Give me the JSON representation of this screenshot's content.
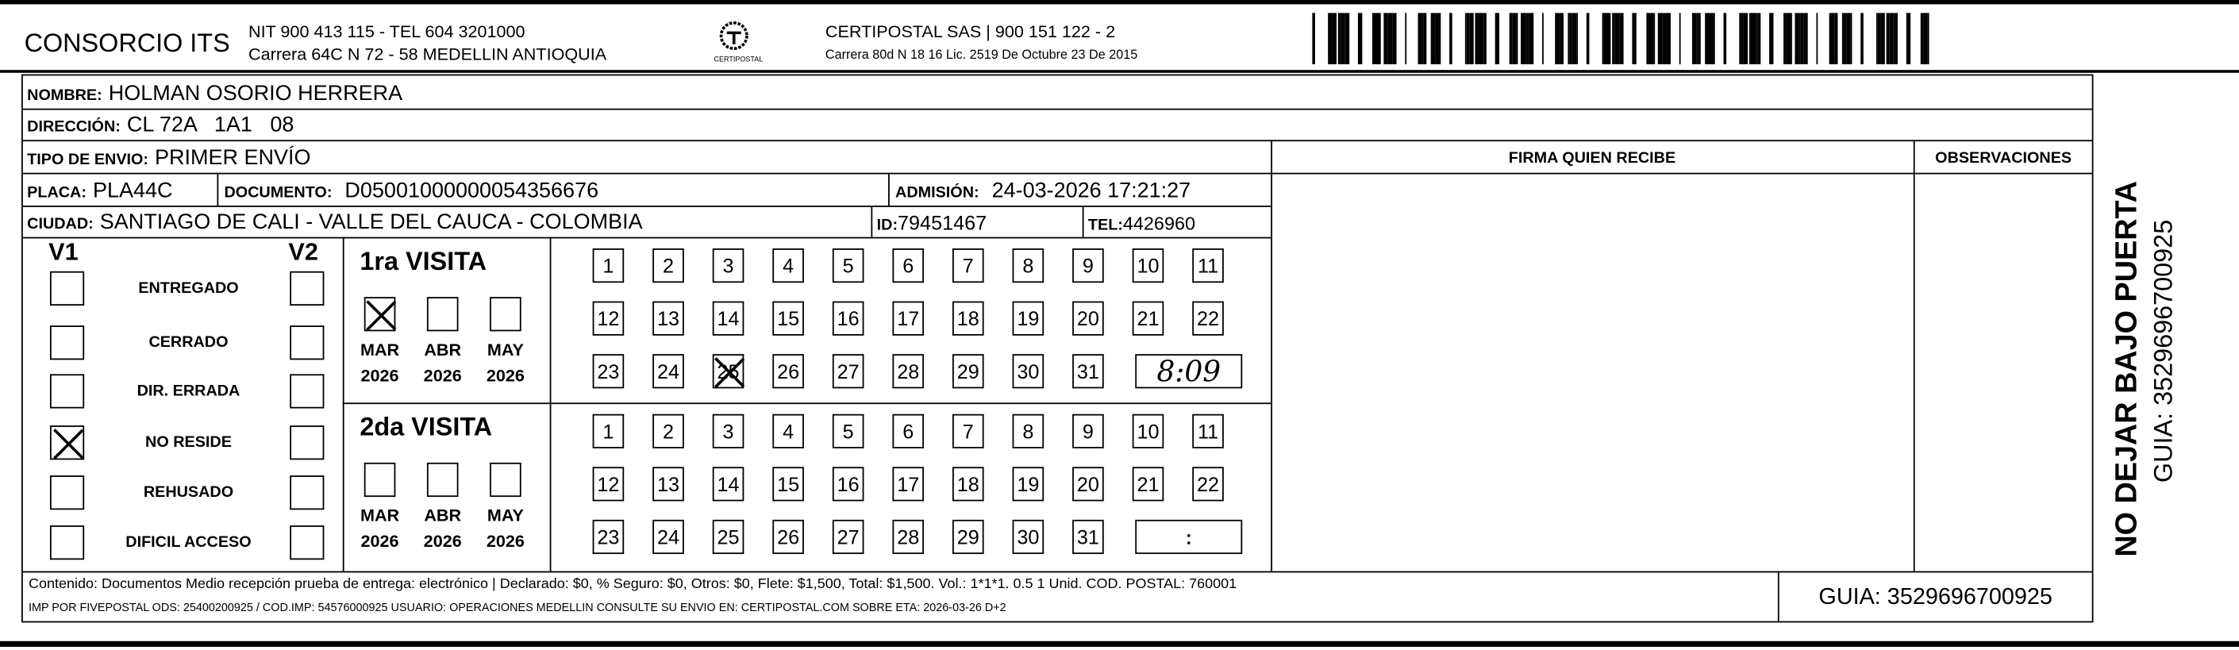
{
  "header": {
    "company": "CONSORCIO ITS",
    "company_line1": "NIT 900 413 115 - TEL 604 3201000",
    "company_line2": "Carrera 64C N 72 - 58 MEDELLIN ANTIOQUIA",
    "logo_text": "CERTIPOSTAL",
    "carrier_line1": "CERTIPOSTAL SAS | 900 151 122 - 2",
    "carrier_line2": "Carrera 80d N 18 16  Lic. 2519 De Octubre 23 De 2015"
  },
  "fields": {
    "nombre_label": "NOMBRE:",
    "nombre": "HOLMAN OSORIO HERRERA",
    "direccion_label": "DIRECCIÓN:",
    "direccion": "CL 72A   1A1   08",
    "tipo_label": "TIPO DE ENVIO:",
    "tipo": "PRIMER ENVÍO",
    "placa_label": "PLACA:",
    "placa": "PLA44C",
    "documento_label": "DOCUMENTO:",
    "documento": "D05001000000054356676",
    "admision_label": "ADMISIÓN:",
    "admision": "24-03-2026 17:21:27",
    "ciudad_label": "CIUDAD:",
    "ciudad": "SANTIAGO DE CALI - VALLE DEL CAUCA - COLOMBIA",
    "id_label": "ID:",
    "id": "79451467",
    "tel_label": "TEL:",
    "tel": "4426960",
    "firma_label": "FIRMA QUIEN RECIBE",
    "observaciones_label": "OBSERVACIONES"
  },
  "status": {
    "v1_label": "V1",
    "v2_label": "V2",
    "items": [
      {
        "label": "ENTREGADO",
        "v1": false,
        "v2": false
      },
      {
        "label": "CERRADO",
        "v1": false,
        "v2": false
      },
      {
        "label": "DIR. ERRADA",
        "v1": false,
        "v2": false
      },
      {
        "label": "NO RESIDE",
        "v1": true,
        "v2": false
      },
      {
        "label": "REHUSADO",
        "v1": false,
        "v2": false
      },
      {
        "label": "DIFICIL ACCESO",
        "v1": false,
        "v2": false
      }
    ]
  },
  "visits": [
    {
      "title": "1ra VISITA",
      "months": [
        {
          "m": "MAR",
          "y": "2026",
          "checked": true
        },
        {
          "m": "ABR",
          "y": "2026",
          "checked": false
        },
        {
          "m": "MAY",
          "y": "2026",
          "checked": false
        }
      ],
      "crossed_day": 25,
      "time": "8:09"
    },
    {
      "title": "2da VISITA",
      "months": [
        {
          "m": "MAR",
          "y": "2026",
          "checked": false
        },
        {
          "m": "ABR",
          "y": "2026",
          "checked": false
        },
        {
          "m": "MAY",
          "y": "2026",
          "checked": false
        }
      ],
      "crossed_day": null,
      "time": ":"
    }
  ],
  "footer": {
    "line1": "Contenido: Documentos Medio recepción prueba de entrega: electrónico | Declarado: $0, % Seguro: $0, Otros: $0, Flete: $1,500, Total: $1,500. Vol.: 1*1*1. 0.5  1 Unid. COD. POSTAL: 760001",
    "line2": "IMP POR FIVEPOSTAL ODS: 25400200925 / COD.IMP: 54576000925 USUARIO: OPERACIONES MEDELLIN CONSULTE SU ENVIO EN: CERTIPOSTAL.COM SOBRE ETA: 2026-03-26 D+2",
    "guia": "GUIA: 3529696700925"
  },
  "side": {
    "warning": "NO DEJAR BAJO PUERTA",
    "guia": "GUIA: 3529696700925"
  }
}
